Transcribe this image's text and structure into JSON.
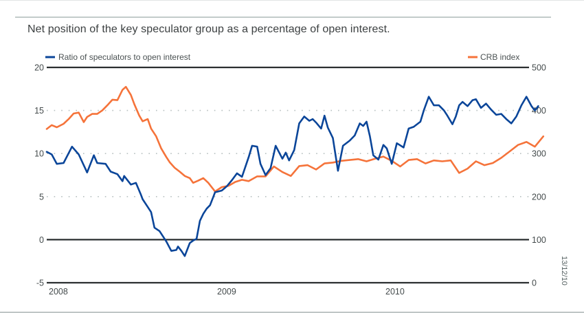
{
  "title": "Net position of the key speculator group as a percentage of open interest.",
  "date_stamp": "13/12/10",
  "colors": {
    "ratio": "#0a4599",
    "crb": "#f5733a",
    "axis": "#2b2f30",
    "grid": "#b7c0c0"
  },
  "chart_data": {
    "type": "line",
    "title": "Net position of the key speculator group as a percentage of open interest.",
    "xlabel": "",
    "ylabel": "",
    "x_range": [
      2008.0,
      2010.95
    ],
    "x_ticks": [
      {
        "value": 2008,
        "label": "2008"
      },
      {
        "value": 2009,
        "label": "2009"
      },
      {
        "value": 2010,
        "label": "2010"
      }
    ],
    "left_axis": {
      "ylim": [
        -5,
        20
      ],
      "ticks": [
        "20",
        "15",
        "10",
        "5",
        "0",
        "-5"
      ],
      "tick_values": [
        20,
        15,
        10,
        5,
        0,
        -5
      ]
    },
    "right_axis": {
      "ylim": [
        0,
        500
      ],
      "ticks": [
        "500",
        "400",
        "300",
        "200",
        "100",
        "0"
      ],
      "tick_values": [
        500,
        400,
        300,
        200,
        100,
        0
      ]
    },
    "grid": {
      "solid": [
        20,
        0,
        -5
      ],
      "dotted": [
        15,
        10,
        5
      ]
    },
    "legend": [
      {
        "name": "Ratio of speculators to open interest",
        "axis": "left",
        "placement": "top-left"
      },
      {
        "name": "CRB index",
        "axis": "right",
        "placement": "top-right"
      }
    ],
    "series": [
      {
        "name": "Ratio of speculators to open interest",
        "axis": "left",
        "x": [
          2008.0,
          2008.03,
          2008.06,
          2008.1,
          2008.15,
          2008.19,
          2008.24,
          2008.28,
          2008.3,
          2008.35,
          2008.38,
          2008.42,
          2008.45,
          2008.46,
          2008.5,
          2008.53,
          2008.56,
          2008.57,
          2008.6,
          2008.62,
          2008.64,
          2008.67,
          2008.71,
          2008.74,
          2008.77,
          2008.78,
          2008.8,
          2008.82,
          2008.85,
          2008.87,
          2008.89,
          2008.91,
          2008.93,
          2008.95,
          2008.97,
          2008.99,
          2009.0,
          2009.04,
          2009.07,
          2009.1,
          2009.13,
          2009.16,
          2009.2,
          2009.22,
          2009.25,
          2009.27,
          2009.3,
          2009.33,
          2009.36,
          2009.4,
          2009.42,
          2009.44,
          2009.47,
          2009.5,
          2009.53,
          2009.56,
          2009.58,
          2009.6,
          2009.63,
          2009.65,
          2009.67,
          2009.7,
          2009.73,
          2009.76,
          2009.8,
          2009.83,
          2009.86,
          2009.88,
          2009.9,
          2009.92,
          2009.94,
          2009.97,
          2010.0,
          2010.02,
          2010.05,
          2010.08,
          2010.12,
          2010.15,
          2010.18,
          2010.22,
          2010.24,
          2010.27,
          2010.3,
          2010.33,
          2010.36,
          2010.38,
          2010.41,
          2010.43,
          2010.45,
          2010.47,
          2010.5,
          2010.53,
          2010.55,
          2010.58,
          2010.61,
          2010.64,
          2010.67,
          2010.7,
          2010.73,
          2010.76,
          2010.79,
          2010.82,
          2010.85,
          2010.88,
          2010.9,
          2010.92
        ],
        "values": [
          10.2,
          9.9,
          8.8,
          8.9,
          10.8,
          9.9,
          7.8,
          9.8,
          8.9,
          8.8,
          7.9,
          7.6,
          6.8,
          7.4,
          6.4,
          6.6,
          5.2,
          4.7,
          3.8,
          3.2,
          1.4,
          1.0,
          -0.2,
          -1.3,
          -1.2,
          -0.8,
          -1.3,
          -1.9,
          -0.4,
          -0.1,
          0.1,
          2.2,
          3.0,
          3.6,
          4.0,
          5.0,
          5.5,
          5.7,
          6.2,
          6.9,
          7.7,
          7.3,
          9.6,
          10.9,
          10.8,
          8.8,
          7.5,
          8.3,
          10.9,
          9.4,
          10.1,
          9.2,
          10.4,
          13.5,
          14.3,
          13.8,
          14.0,
          13.6,
          12.9,
          14.4,
          13.0,
          11.8,
          8.0,
          10.9,
          11.5,
          12.1,
          13.5,
          13.2,
          13.7,
          12.0,
          9.8,
          9.3,
          11.0,
          10.6,
          8.8,
          11.2,
          10.7,
          12.9,
          13.1,
          13.7,
          15.0,
          16.6,
          15.6,
          15.6,
          15.0,
          14.4,
          13.4,
          14.3,
          15.6,
          16.0,
          15.5,
          16.2,
          16.3,
          15.3,
          15.8,
          15.1,
          14.5,
          14.6,
          14.0,
          13.5,
          14.3,
          15.6,
          16.6,
          15.5,
          15.0,
          15.5
        ]
      },
      {
        "name": "CRB index",
        "axis": "right",
        "x": [
          2008.0,
          2008.03,
          2008.06,
          2008.1,
          2008.13,
          2008.16,
          2008.19,
          2008.22,
          2008.24,
          2008.27,
          2008.3,
          2008.33,
          2008.36,
          2008.39,
          2008.42,
          2008.45,
          2008.47,
          2008.5,
          2008.52,
          2008.55,
          2008.57,
          2008.6,
          2008.62,
          2008.65,
          2008.68,
          2008.71,
          2008.73,
          2008.76,
          2008.79,
          2008.82,
          2008.85,
          2008.87,
          2008.9,
          2008.93,
          2008.96,
          2009.0,
          2009.04,
          2009.08,
          2009.12,
          2009.16,
          2009.2,
          2009.25,
          2009.3,
          2009.35,
          2009.4,
          2009.45,
          2009.5,
          2009.55,
          2009.6,
          2009.65,
          2009.7,
          2009.75,
          2009.8,
          2009.85,
          2009.9,
          2009.95,
          2010.0,
          2010.05,
          2010.1,
          2010.15,
          2010.2,
          2010.25,
          2010.3,
          2010.35,
          2010.4,
          2010.45,
          2010.5,
          2010.55,
          2010.6,
          2010.65,
          2010.7,
          2010.75,
          2010.8,
          2010.85,
          2010.9,
          2010.95
        ],
        "values": [
          357,
          366,
          361,
          369,
          380,
          393,
          395,
          373,
          385,
          392,
          392,
          400,
          412,
          425,
          424,
          448,
          455,
          436,
          415,
          388,
          375,
          380,
          358,
          340,
          312,
          292,
          280,
          267,
          258,
          248,
          243,
          232,
          237,
          243,
          232,
          212,
          222,
          225,
          234,
          239,
          236,
          247,
          247,
          270,
          257,
          248,
          271,
          273,
          263,
          277,
          279,
          283,
          285,
          287,
          282,
          288,
          293,
          283,
          270,
          285,
          287,
          277,
          284,
          282,
          284,
          255,
          265,
          282,
          273,
          278,
          290,
          305,
          320,
          327,
          316,
          340
        ]
      }
    ]
  }
}
